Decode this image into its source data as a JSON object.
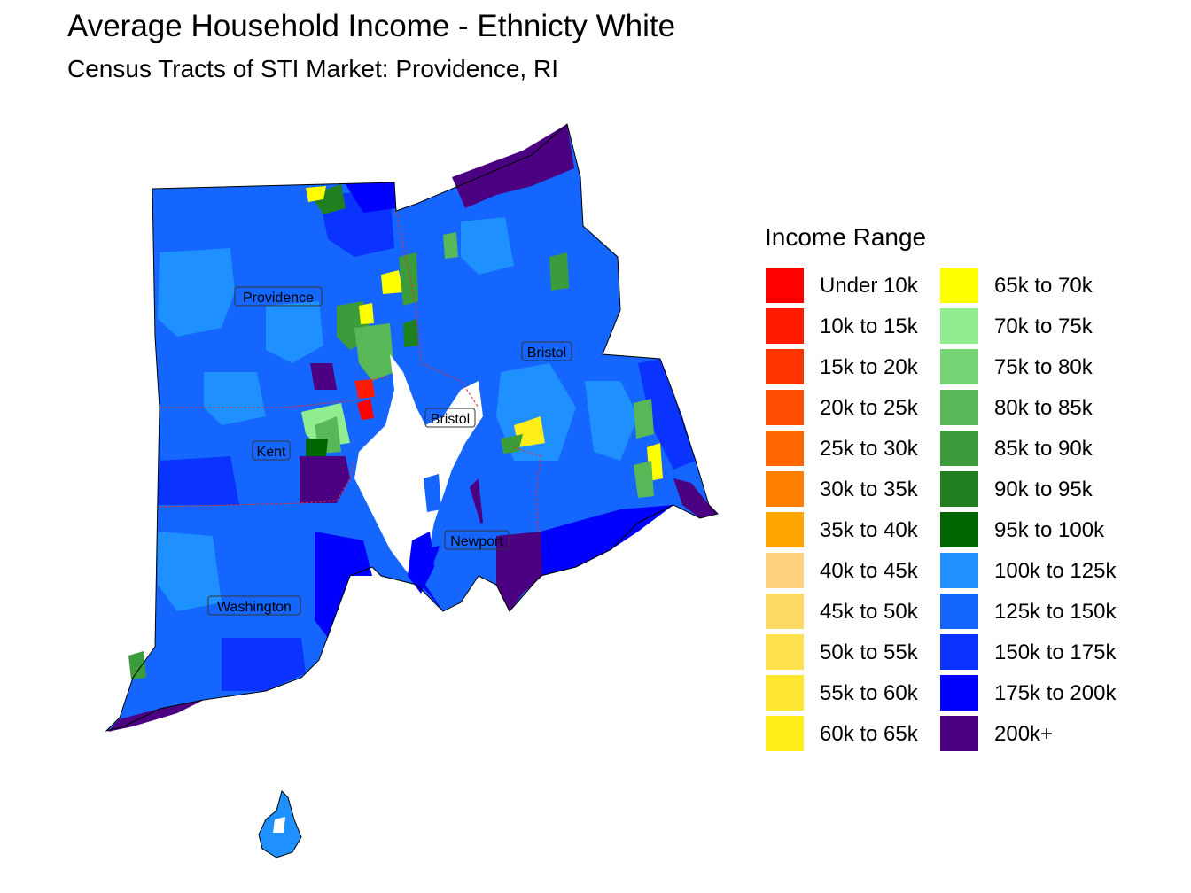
{
  "title": "Average Household Income - Ethnicty White",
  "subtitle": "Census Tracts of STI Market: Providence, RI",
  "legend": {
    "title": "Income Range",
    "columns": [
      [
        {
          "label": "Under 10k",
          "color": "#ff0000"
        },
        {
          "label": "10k to 15k",
          "color": "#ff1a00"
        },
        {
          "label": "15k to 20k",
          "color": "#ff3300"
        },
        {
          "label": "20k to 25k",
          "color": "#ff4d00"
        },
        {
          "label": "25k to 30k",
          "color": "#ff6600"
        },
        {
          "label": "30k to 35k",
          "color": "#ff8000"
        },
        {
          "label": "35k to 40k",
          "color": "#ffa500"
        },
        {
          "label": "40k to 45k",
          "color": "#ffd27f"
        },
        {
          "label": "45k to 50k",
          "color": "#ffd966"
        },
        {
          "label": "50k to 55k",
          "color": "#ffe04d"
        },
        {
          "label": "55k to 60k",
          "color": "#ffe633"
        },
        {
          "label": "60k to 65k",
          "color": "#ffee1a"
        }
      ],
      [
        {
          "label": "65k to 70k",
          "color": "#ffff00"
        },
        {
          "label": "70k to 75k",
          "color": "#90ee90"
        },
        {
          "label": "75k to 80k",
          "color": "#74d474"
        },
        {
          "label": "80k to 85k",
          "color": "#58b858"
        },
        {
          "label": "85k to 90k",
          "color": "#3c9c3c"
        },
        {
          "label": "90k to 95k",
          "color": "#208020"
        },
        {
          "label": "95k to 100k",
          "color": "#006400"
        },
        {
          "label": "100k to 125k",
          "color": "#1e90ff"
        },
        {
          "label": "125k to 150k",
          "color": "#1466ff"
        },
        {
          "label": "150k to 175k",
          "color": "#0a33ff"
        },
        {
          "label": "175k to 200k",
          "color": "#0000ff"
        },
        {
          "label": "200k+",
          "color": "#4b0082"
        }
      ]
    ]
  },
  "counties": {
    "providence": "Providence",
    "kent": "Kent",
    "bristol": "Bristol",
    "bristol_ma": "Bristol",
    "newport": "Newport",
    "washington": "Washington"
  }
}
